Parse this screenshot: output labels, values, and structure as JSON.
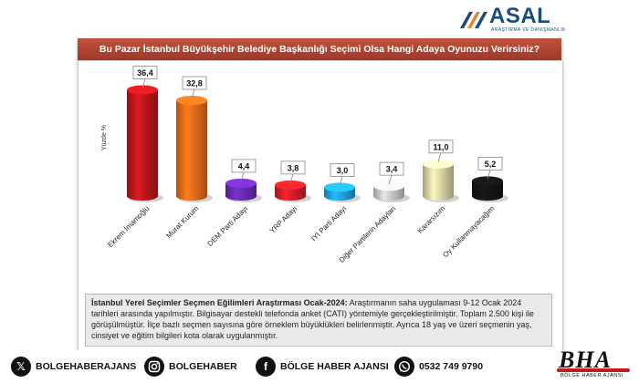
{
  "logo": {
    "name": "ASAL",
    "tagline": "ARAŞTIRMA VE DANIŞMANLIK"
  },
  "chart_data": {
    "type": "bar",
    "title": "Bu Pazar İstanbul Büyükşehir Belediye Başkanlığı Seçimi Olsa Hangi Adaya Oyunuzu Verirsiniz?",
    "ylabel": "Yüzde %",
    "ylim": [
      0,
      40
    ],
    "grid": false,
    "categories": [
      "Ekrem İmamoğlu",
      "Murat Kurum",
      "DEM Parti Adayı",
      "YRP Adayı",
      "İYİ Parti Adayı",
      "Diğer Partilerin Adayları",
      "Kararsızım",
      "Oy Kullanmayacağım"
    ],
    "values": [
      36.4,
      32.8,
      4.4,
      3.8,
      3.0,
      3.4,
      11.0,
      5.2
    ],
    "value_labels": [
      "36,4",
      "32,8",
      "4,4",
      "3,8",
      "3,0",
      "3,4",
      "11,0",
      "5,2"
    ],
    "colors": [
      "#c0161c",
      "#ef6c1a",
      "#6a2bb5",
      "#d81e26",
      "#1fa3df",
      "#c9c9c9",
      "#dcd6a8",
      "#151515"
    ]
  },
  "note": {
    "heading": "İstanbul Yerel Seçimler Seçmen Eğilimleri Araştırması Ocak-2024:",
    "text": "Araştırmanın saha uygulaması 9-12 Ocak 2024 tarihleri arasında yapılmıştır. Bilgisayar destekli telefonda anket (CATI) yöntemiyle gerçekleştirilmiştir. Toplam 2.500 kişi ile görüşülmüştür. İlçe bazlı seçmen sayısına göre örneklem büyüklükleri belirlenmiştir. Ayrıca 18 yaş ve üzeri seçmenin yaş, cinsiyet ve eğitim bilgileri kota olarak uygulanmıştır."
  },
  "footer": {
    "x": "BOLGEHABERAJANS",
    "instagram": "BOLGEHABER",
    "facebook": "BÖLGE HABER AJANSI",
    "whatsapp": "0532 749 9790"
  },
  "brand": {
    "short": "BHA",
    "full": "BÖLGE HABER AJANSI"
  }
}
